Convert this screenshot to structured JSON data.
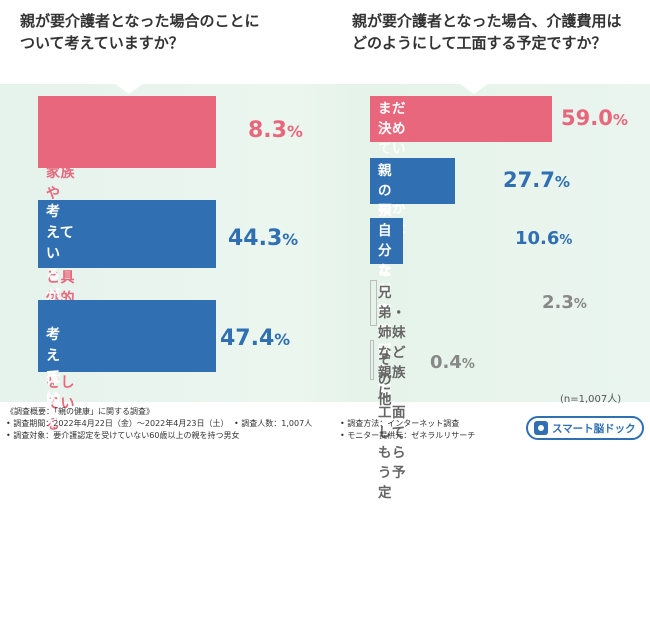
{
  "left": {
    "title": "親が要介護者となった場合のことに\nついて考えていますか？"
  },
  "right": {
    "title": "親が要介護者となった場合、介護費用は\nどのようにして工面する予定ですか？"
  },
  "chart_data": [
    {
      "type": "bar",
      "orientation": "horizontal",
      "title": "親が要介護者となった場合のことについて考えていますか？",
      "categories": [
        "考えていて、家族や\n親・兄弟などと具体的な\n話し合いをしている",
        "考えているが、\nまだ具体的な\n話し合いはしていない",
        "考えていない"
      ],
      "values": [
        8.3,
        44.3,
        47.4
      ],
      "value_labels": [
        "8.3",
        "44.3",
        "47.4"
      ],
      "unit": "%",
      "colors": [
        "#e8677c",
        "#2f6fb2",
        "#2f6fb2"
      ]
    },
    {
      "type": "bar",
      "orientation": "horizontal",
      "title": "親が要介護者となった場合、介護費用はどのようにして工面する予定ですか？",
      "categories": [
        "まだ決めていない・\nわからない",
        "親の預貯金などで\n工面する予定",
        "自分たち家族が\n工面する予定",
        "兄弟・姉妹など親族に\n工面してもらう予定",
        "その他"
      ],
      "values": [
        59.0,
        27.7,
        10.6,
        2.3,
        0.4
      ],
      "value_labels": [
        "59.0",
        "27.7",
        "10.6",
        "2.3",
        "0.4"
      ],
      "unit": "%",
      "colors": [
        "#e8677c",
        "#2f6fb2",
        "#2f6fb2",
        "#bdbdbd",
        "#bdbdbd"
      ]
    }
  ],
  "sample_note": "(n=1,007人)",
  "footnotes": {
    "heading": "《調査概要：「親の健康」に関する調査》",
    "period": "• 調査期間：2022年4月22日（金）〜2022年4月23日（土）",
    "respondents": "• 調査人数：1,007人",
    "method": "• 調査方法：インターネット調査",
    "target": "• 調査対象：要介護認定を受けていない60歳以上の親を持つ男女",
    "provider": "• モニター提供元：ゼネラルリサーチ"
  },
  "logo": {
    "text": "スマート脳ドック",
    "icon": "brain-house-icon"
  }
}
